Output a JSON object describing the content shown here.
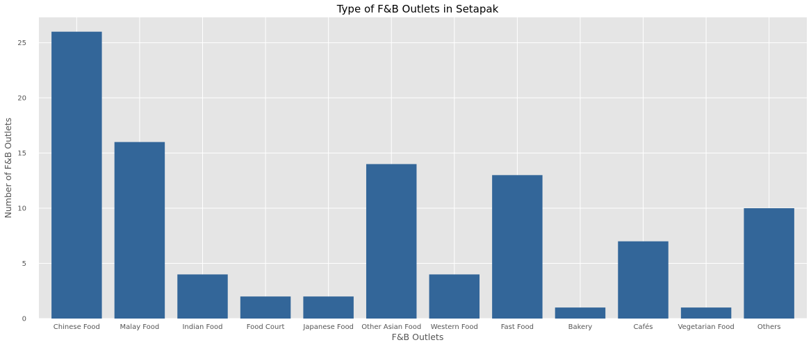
{
  "chart_data": {
    "type": "bar",
    "title": "Type of F&B Outlets in Setapak",
    "xlabel": "F&B Outlets",
    "ylabel": "Number of F&B Outlets",
    "categories": [
      "Chinese Food",
      "Malay Food",
      "Indian Food",
      "Food Court",
      "Japanese Food",
      "Other Asian Food",
      "Western Food",
      "Fast Food",
      "Bakery",
      "Cafés",
      "Vegetarian Food",
      "Others"
    ],
    "values": [
      26,
      16,
      4,
      2,
      2,
      14,
      4,
      13,
      1,
      7,
      1,
      10
    ],
    "ylim": [
      0,
      27.3
    ],
    "yticks": [
      0,
      5,
      10,
      15,
      20,
      25
    ],
    "grid": true,
    "legend": "none",
    "colors": {
      "bar": "#336699",
      "plot_background": "#e5e5e5",
      "grid": "#ffffff"
    }
  }
}
